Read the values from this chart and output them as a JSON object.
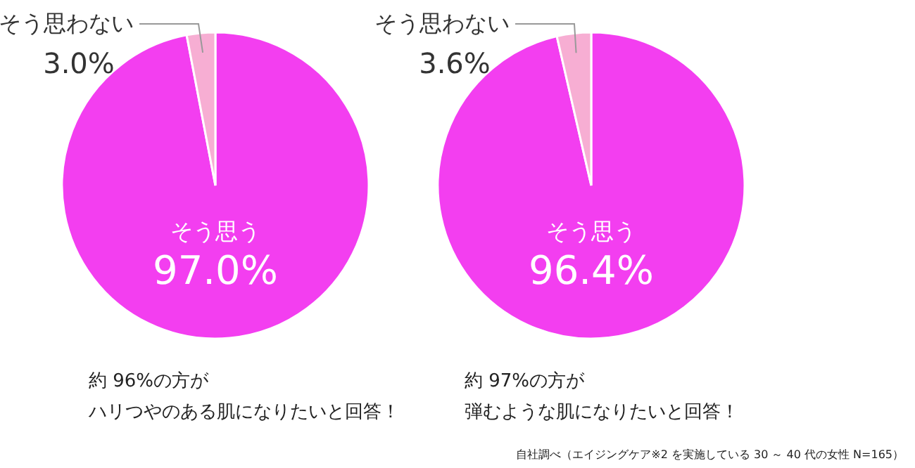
{
  "chart_data": [
    {
      "type": "pie",
      "categories": [
        "そう思う",
        "そう思わない"
      ],
      "values": [
        97.0,
        3.0
      ],
      "value_labels": [
        "97.0%",
        "3.0%"
      ],
      "colors": [
        "#f33ef0",
        "#f7aed3"
      ],
      "annotations": [
        "約 96%の方が",
        "ハリつやのある肌になりたいと回答！"
      ]
    },
    {
      "type": "pie",
      "categories": [
        "そう思う",
        "そう思わない"
      ],
      "values": [
        96.4,
        3.6
      ],
      "value_labels": [
        "96.4%",
        "3.6%"
      ],
      "colors": [
        "#f33ef0",
        "#f7aed3"
      ],
      "annotations": [
        "約 97%の方が",
        "弾むような肌になりたいと回答！",
        "自社調べ（エイジングケア※2 を実施している 30 ～ 40 代の女性 N=165）"
      ]
    }
  ]
}
